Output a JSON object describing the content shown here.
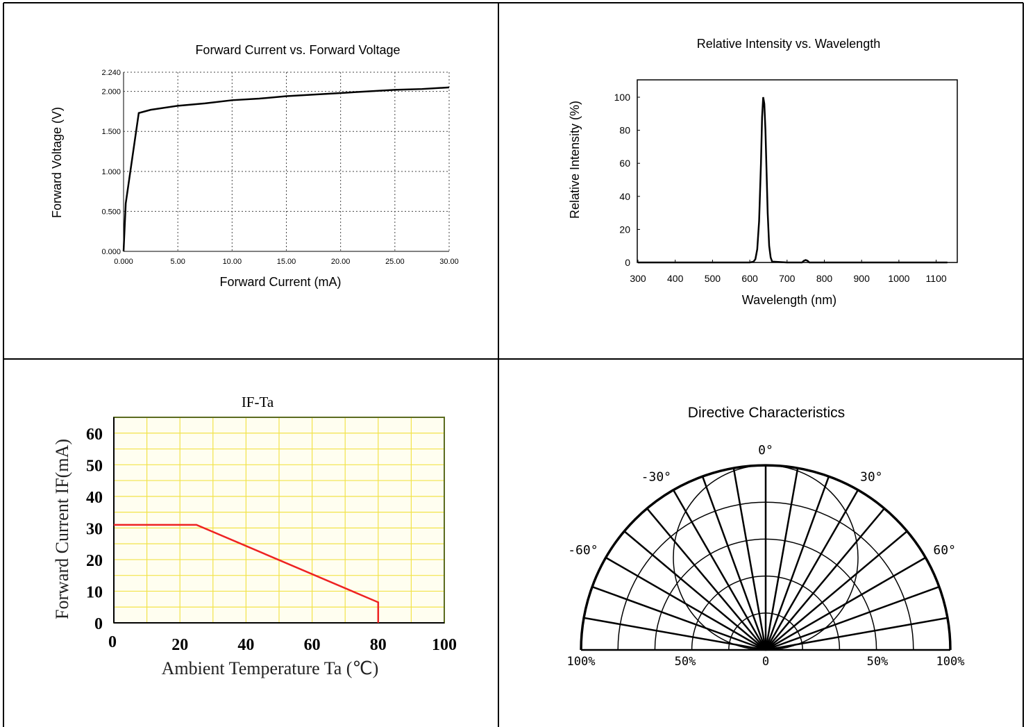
{
  "chart_data": [
    {
      "type": "line",
      "title": "Forward Current vs. Forward Voltage",
      "xlabel": "Forward Current (mA)",
      "ylabel": "Forward Voltage (V)",
      "xlim": [
        0,
        30
      ],
      "ylim": [
        0,
        2.24
      ],
      "xticks": [
        0,
        5,
        10,
        15,
        20,
        25,
        30
      ],
      "xtick_labels": [
        "0.000",
        "5.00",
        "10.00",
        "15.00",
        "20.00",
        "25.00",
        "30.00"
      ],
      "yticks": [
        0,
        0.5,
        1.0,
        1.5,
        2.0,
        2.24
      ],
      "ytick_labels": [
        "0.000",
        "0.500",
        "1.000",
        "1.500",
        "2.000",
        "2.240"
      ],
      "grid": "dotted",
      "series": [
        {
          "x": [
            0,
            0.2,
            1.4,
            2.5,
            5,
            7.5,
            10,
            12.5,
            15,
            17.5,
            20,
            22.5,
            25,
            27.5,
            30
          ],
          "y": [
            0,
            0.6,
            1.73,
            1.77,
            1.82,
            1.85,
            1.89,
            1.91,
            1.94,
            1.96,
            1.98,
            2.0,
            2.02,
            2.03,
            2.05
          ]
        }
      ]
    },
    {
      "type": "line",
      "title": "Relative Intensity vs. Wavelength",
      "xlabel": "Wavelength (nm)",
      "ylabel": "Relative Intensity (%)",
      "xlim": [
        300,
        1140
      ],
      "ylim": [
        0,
        110
      ],
      "xticks": [
        300,
        400,
        500,
        600,
        700,
        800,
        900,
        1000,
        1100
      ],
      "yticks": [
        0,
        20,
        40,
        60,
        80,
        100
      ],
      "grid": "off",
      "series": [
        {
          "x": [
            300,
            600,
            610,
            615,
            620,
            625,
            630,
            633,
            636,
            639,
            642,
            645,
            648,
            652,
            656,
            660,
            700,
            740,
            745,
            750,
            755,
            760,
            1130
          ],
          "y": [
            0,
            0,
            0.5,
            2,
            8,
            25,
            60,
            88,
            100,
            96,
            80,
            55,
            30,
            10,
            3,
            0.5,
            0,
            0,
            1,
            1.5,
            1,
            0,
            0
          ]
        }
      ]
    },
    {
      "type": "line",
      "title": "IF-Ta",
      "xlabel": "Ambient Temperature Ta (℃)",
      "ylabel": "Forward Current IF(mA)",
      "xlim": [
        0,
        100
      ],
      "ylim": [
        0,
        65
      ],
      "xticks": [
        0,
        20,
        40,
        60,
        80,
        100
      ],
      "yticks": [
        0,
        10,
        20,
        30,
        40,
        50,
        60
      ],
      "grid": "on",
      "colors": {
        "line": "#ee2222",
        "grid": "#f2e34a",
        "background": "#fffef0",
        "frame": "#5a6b1f"
      },
      "series": [
        {
          "x": [
            0,
            25,
            80,
            80
          ],
          "y": [
            31,
            31,
            6.5,
            0
          ]
        }
      ]
    },
    {
      "type": "polar",
      "title": "Directive Characteristics",
      "angle_labels": [
        "-60°",
        "-30°",
        "0°",
        "30°",
        "60°"
      ],
      "angle_values": [
        -60,
        -30,
        0,
        30,
        60
      ],
      "radial_labels": [
        "100%",
        "50%",
        "0",
        "50%",
        "100%"
      ],
      "series": [
        {
          "name": "",
          "shape": "circle",
          "diameter_pct": 100
        }
      ]
    }
  ]
}
